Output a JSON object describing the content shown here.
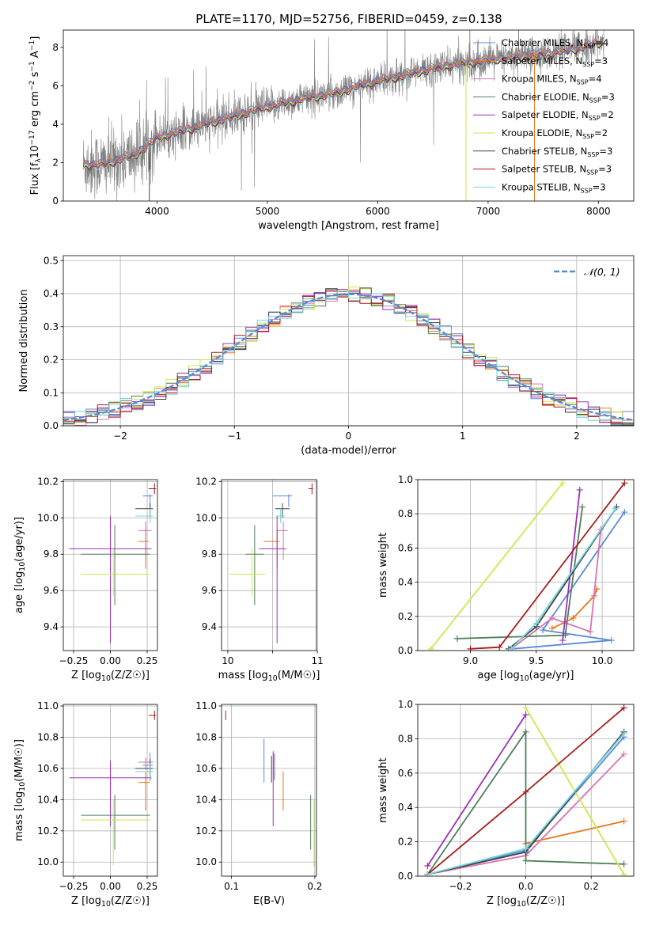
{
  "figure_title": "PLATE=1170, MJD=52756, FIBERID=0459, z=0.138",
  "model_colors": [
    "#5a8ad6",
    "#e8771e",
    "#db72b0",
    "#4f7f5a",
    "#9a30b8",
    "#cfe64c",
    "#454545",
    "#a81c1c",
    "#74d4e0"
  ],
  "legend_labels": [
    [
      "Chabrier MILES, N",
      "SSP",
      "=4"
    ],
    [
      "Salpeter MILES, N",
      "SSP",
      "=3"
    ],
    [
      "Kroupa MILES, N",
      "SSP",
      "=4"
    ],
    [
      "Chabrier ELODIE, N",
      "SSP",
      "=3"
    ],
    [
      "Salpeter ELODIE, N",
      "SSP",
      "=2"
    ],
    [
      "Kroupa ELODIE, N",
      "SSP",
      "=2"
    ],
    [
      "Chabrier STELIB, N",
      "SSP",
      "=3"
    ],
    [
      "Salpeter STELIB, N",
      "SSP",
      "=3"
    ],
    [
      "Kroupa STELIB, N",
      "SSP",
      "=3"
    ]
  ],
  "chart_data": [
    {
      "id": "spectrum",
      "type": "line",
      "xlabel": "wavelength [Angstrom, rest frame]",
      "ylabel_parts": [
        "Flux [f",
        "λ",
        "10",
        "−17",
        " erg cm",
        "−2",
        " s",
        "−1",
        " A",
        "−1",
        "]"
      ],
      "xlim": [
        3150,
        8320
      ],
      "ylim": [
        0,
        8.9
      ],
      "xticks": [
        4000,
        5000,
        6000,
        7000,
        8000
      ],
      "yticks": [
        0,
        2,
        4,
        6,
        8
      ],
      "observed_color": "#808080",
      "continuum_x": [
        3330,
        3500,
        3800,
        4000,
        4200,
        4500,
        4800,
        5000,
        5300,
        5600,
        5900,
        6200,
        6500,
        6800,
        7100,
        7400,
        7700,
        8050
      ],
      "continuum_y": [
        1.9,
        1.9,
        2.4,
        3.3,
        3.6,
        4.1,
        4.6,
        4.9,
        5.3,
        5.6,
        6.1,
        6.5,
        6.9,
        7.2,
        7.4,
        7.6,
        7.8,
        8.3
      ]
    },
    {
      "id": "residuals",
      "type": "histogram",
      "xlabel": "(data-model)/error",
      "ylabel": "Normed distribution",
      "xlim": [
        -2.5,
        2.5
      ],
      "ylim": [
        0,
        0.515
      ],
      "xticks": [
        -2,
        -1,
        0,
        1,
        2
      ],
      "yticks": [
        0.0,
        0.1,
        0.2,
        0.3,
        0.4,
        0.5
      ],
      "xtick_labels": [
        "−2",
        "−1",
        "0",
        "1",
        "2"
      ],
      "yticklabels": [
        "0.0",
        "0.1",
        "0.2",
        "0.3",
        "0.4",
        "0.5"
      ],
      "bin_width": 0.1,
      "normal_label": "𝒩(0, 1)",
      "normal_color": "#5a8ad6"
    },
    {
      "id": "age_vs_Z",
      "type": "scatter",
      "xlabel": "Z [log10(Z/Z☉)]",
      "ylabel": "age [log10(age/yr)]",
      "xlim": [
        -0.32,
        0.32
      ],
      "ylim": [
        9.27,
        10.21
      ],
      "xticks": [
        -0.25,
        0,
        0.25
      ],
      "xticklabels": [
        "−0.25",
        "0.00",
        "0.25"
      ],
      "yticks": [
        9.4,
        9.6,
        9.8,
        10.0,
        10.2
      ],
      "yticklabels": [
        "9.4",
        "9.6",
        "9.8",
        "10.0",
        "10.2"
      ],
      "points": [
        {
          "x": 0.27,
          "y": 10.12,
          "xerr": [
            0.05,
            0.02
          ],
          "yerr": [
            0.06,
            0.01
          ]
        },
        {
          "x": 0.24,
          "y": 9.87,
          "xerr": [
            0.05,
            0.02
          ],
          "yerr": [
            0.15,
            0.07
          ]
        },
        {
          "x": 0.24,
          "y": 9.93,
          "xerr": [
            0.05,
            0.04
          ],
          "yerr": [
            0.16,
            0.05
          ]
        },
        {
          "x": 0.03,
          "y": 9.8,
          "xerr": [
            0.23,
            0.24
          ],
          "yerr": [
            0.28,
            0.16
          ]
        },
        {
          "x": 0.0,
          "y": 9.83,
          "xerr": [
            0.28,
            0.28
          ],
          "yerr": [
            0.52,
            0.18
          ]
        },
        {
          "x": 0.02,
          "y": 9.69,
          "xerr": [
            0.22,
            0.25
          ],
          "yerr": [
            0.12,
            0.14
          ]
        },
        {
          "x": 0.27,
          "y": 10.05,
          "xerr": [
            0.1,
            0.02
          ],
          "yerr": [
            0.05,
            0.03
          ]
        },
        {
          "x": 0.3,
          "y": 10.16,
          "xerr": [
            0.04,
            0.01
          ],
          "yerr": [
            0.03,
            0.03
          ]
        },
        {
          "x": 0.27,
          "y": 10.01,
          "xerr": [
            0.1,
            0.02
          ],
          "yerr": [
            0.04,
            0.04
          ]
        }
      ]
    },
    {
      "id": "age_vs_mass",
      "type": "scatter",
      "xlabel": "mass [log10(M/M☉)]",
      "ylabel": "",
      "xlim": [
        9.93,
        10.99
      ],
      "ylim": [
        9.27,
        10.21
      ],
      "xticks": [
        10,
        10.5,
        11
      ],
      "xticklabels": [
        "10",
        "",
        "11"
      ],
      "yticks": [
        9.4,
        9.6,
        9.8,
        10.0,
        10.2
      ],
      "yticklabels": [
        "9.4",
        "9.6",
        "9.8",
        "10.0",
        "10.2"
      ],
      "points": [
        {
          "x": 10.68,
          "y": 10.12,
          "xerr": [
            0.18,
            0.04
          ],
          "yerr": [
            0.06,
            0.01
          ]
        },
        {
          "x": 10.55,
          "y": 9.87,
          "xerr": [
            0.15,
            0.03
          ],
          "yerr": [
            0.15,
            0.07
          ]
        },
        {
          "x": 10.62,
          "y": 9.93,
          "xerr": [
            0.07,
            0.05
          ],
          "yerr": [
            0.16,
            0.05
          ]
        },
        {
          "x": 10.3,
          "y": 9.8,
          "xerr": [
            0.1,
            0.1
          ],
          "yerr": [
            0.28,
            0.16
          ]
        },
        {
          "x": 10.55,
          "y": 9.83,
          "xerr": [
            0.2,
            0.1
          ],
          "yerr": [
            0.52,
            0.18
          ]
        },
        {
          "x": 10.27,
          "y": 9.69,
          "xerr": [
            0.25,
            0.15
          ],
          "yerr": [
            0.12,
            0.14
          ]
        },
        {
          "x": 10.61,
          "y": 10.05,
          "xerr": [
            0.08,
            0.08
          ],
          "yerr": [
            0.05,
            0.03
          ]
        },
        {
          "x": 10.94,
          "y": 10.16,
          "xerr": [
            0.04,
            0.01
          ],
          "yerr": [
            0.03,
            0.03
          ]
        },
        {
          "x": 10.59,
          "y": 10.01,
          "xerr": [
            0.05,
            0.05
          ],
          "yerr": [
            0.04,
            0.04
          ]
        }
      ]
    },
    {
      "id": "weights_vs_age",
      "type": "line",
      "xlabel": "age [log10(age/yr)]",
      "ylabel": "mass weight",
      "xlim": [
        8.6,
        10.24
      ],
      "ylim": [
        0,
        1
      ],
      "xticks": [
        9.0,
        9.5,
        10.0
      ],
      "yticks": [
        0,
        0.2,
        0.4,
        0.6,
        0.8,
        1.0
      ],
      "xticklabels": [
        "9.0",
        "9.5",
        "10.0"
      ],
      "yticklabels": [
        "0.0",
        "0.2",
        "0.4",
        "0.6",
        "0.8",
        "1.0"
      ],
      "series": [
        {
          "x": [
            10.17,
            9.55,
            10.07,
            9.32
          ],
          "y": [
            0.81,
            0.12,
            0.06,
            0.01
          ]
        },
        {
          "x": [
            9.96,
            9.94,
            9.78,
            9.62
          ],
          "y": [
            0.36,
            0.32,
            0.19,
            0.13
          ]
        },
        {
          "x": [
            9.99,
            9.91,
            9.62,
            9.31
          ],
          "y": [
            0.71,
            0.11,
            0.19,
            0.01
          ]
        },
        {
          "x": [
            9.85,
            9.72,
            8.9
          ],
          "y": [
            0.84,
            0.09,
            0.07
          ]
        },
        {
          "x": [
            9.83,
            9.7
          ],
          "y": [
            0.94,
            0.06
          ]
        },
        {
          "x": [
            9.7,
            8.7
          ],
          "y": [
            0.98,
            0.01
          ]
        },
        {
          "x": [
            10.11,
            9.5,
            9.29
          ],
          "y": [
            0.84,
            0.14,
            0.01
          ]
        },
        {
          "x": [
            10.17,
            9.22,
            9.0
          ],
          "y": [
            0.98,
            0.02,
            0.01
          ]
        },
        {
          "x": [
            10.1,
            9.5,
            9.31
          ],
          "y": [
            0.83,
            0.16,
            0.01
          ]
        }
      ]
    },
    {
      "id": "mass_vs_Z",
      "type": "scatter",
      "xlabel": "Z [log10(Z/Z☉)]",
      "ylabel": "mass [log10(M/M☉)]",
      "xlim": [
        -0.32,
        0.32
      ],
      "ylim": [
        9.91,
        11.01
      ],
      "xticks": [
        -0.25,
        0,
        0.25
      ],
      "xticklabels": [
        "−0.25",
        "0.00",
        "0.25"
      ],
      "yticks": [
        10.0,
        10.2,
        10.4,
        10.6,
        10.8,
        11.0
      ],
      "yticklabels": [
        "10.0",
        "10.2",
        "10.4",
        "10.6",
        "10.8",
        "11.0"
      ],
      "points": [
        {
          "x": 0.27,
          "y": 10.62,
          "xerr": [
            0.05,
            0.02
          ],
          "yerr": [
            0.1,
            0.08
          ]
        },
        {
          "x": 0.24,
          "y": 10.51,
          "xerr": [
            0.05,
            0.03
          ],
          "yerr": [
            0.18,
            0.07
          ]
        },
        {
          "x": 0.24,
          "y": 10.64,
          "xerr": [
            0.05,
            0.05
          ],
          "yerr": [
            0.05,
            0.03
          ]
        },
        {
          "x": 0.03,
          "y": 10.3,
          "xerr": [
            0.23,
            0.24
          ],
          "yerr": [
            0.22,
            0.13
          ]
        },
        {
          "x": 0.0,
          "y": 10.54,
          "xerr": [
            0.28,
            0.28
          ],
          "yerr": [
            0.31,
            0.11
          ]
        },
        {
          "x": 0.02,
          "y": 10.27,
          "xerr": [
            0.22,
            0.25
          ],
          "yerr": [
            0.29,
            0.13
          ]
        },
        {
          "x": 0.27,
          "y": 10.6,
          "xerr": [
            0.1,
            0.02
          ],
          "yerr": [
            0.08,
            0.06
          ]
        },
        {
          "x": 0.3,
          "y": 10.94,
          "xerr": [
            0.04,
            0.01
          ],
          "yerr": [
            0.03,
            0.03
          ]
        },
        {
          "x": 0.27,
          "y": 10.58,
          "xerr": [
            0.1,
            0.02
          ],
          "yerr": [
            0.06,
            0.05
          ]
        }
      ]
    },
    {
      "id": "mass_vs_EBV",
      "type": "scatter",
      "xlabel": "E(B-V)",
      "ylabel": "",
      "xlim": [
        0.088,
        0.202
      ],
      "ylim": [
        9.91,
        11.01
      ],
      "xticks": [
        0.1,
        0.2
      ],
      "xticklabels": [
        "0.1",
        "0.2"
      ],
      "yticks": [
        10.0,
        10.2,
        10.4,
        10.6,
        10.8,
        11.0
      ],
      "yticklabels": [
        "10.0",
        "10.2",
        "10.4",
        "10.6",
        "10.8",
        "11.0"
      ],
      "points": [
        {
          "x": 0.139,
          "y": 10.65,
          "xerr": [
            0,
            0
          ],
          "yerr": [
            0.14,
            0.14
          ]
        },
        {
          "x": 0.162,
          "y": 10.47,
          "xerr": [
            0,
            0
          ],
          "yerr": [
            0.14,
            0.11
          ]
        },
        {
          "x": 0.151,
          "y": 10.6,
          "xerr": [
            0,
            0
          ],
          "yerr": [
            0.07,
            0.1
          ]
        },
        {
          "x": 0.195,
          "y": 10.25,
          "xerr": [
            0,
            0
          ],
          "yerr": [
            0.17,
            0.18
          ]
        },
        {
          "x": 0.15,
          "y": 10.46,
          "xerr": [
            0,
            0
          ],
          "yerr": [
            0.23,
            0.25
          ]
        },
        {
          "x": 0.199,
          "y": 10.18,
          "xerr": [
            0,
            0
          ],
          "yerr": [
            0.21,
            0.22
          ]
        },
        {
          "x": 0.148,
          "y": 10.58,
          "xerr": [
            0,
            0
          ],
          "yerr": [
            0.07,
            0.1
          ]
        },
        {
          "x": 0.093,
          "y": 10.94,
          "xerr": [
            0,
            0
          ],
          "yerr": [
            0.03,
            0.03
          ]
        },
        {
          "x": 0.152,
          "y": 10.6,
          "xerr": [
            0,
            0
          ],
          "yerr": [
            0.08,
            0.09
          ]
        }
      ]
    },
    {
      "id": "weights_vs_Z",
      "type": "line",
      "xlabel": "Z [log10(Z/Z☉)]",
      "ylabel": "mass weight",
      "xlim": [
        -0.33,
        0.33
      ],
      "ylim": [
        0,
        1
      ],
      "xticks": [
        -0.2,
        0.0,
        0.2
      ],
      "xticklabels": [
        "−0.2",
        "0.0",
        "0.2"
      ],
      "yticks": [
        0,
        0.2,
        0.4,
        0.6,
        0.8,
        1.0
      ],
      "yticklabels": [
        "0.0",
        "0.2",
        "0.4",
        "0.6",
        "0.8",
        "1.0"
      ],
      "series": [
        {
          "x": [
            0.3,
            0.0,
            -0.3
          ],
          "y": [
            0.81,
            0.15,
            0.01
          ]
        },
        {
          "x": [
            0.3,
            0.0
          ],
          "y": [
            0.32,
            0.19
          ]
        },
        {
          "x": [
            0.3,
            0.0,
            -0.3
          ],
          "y": [
            0.71,
            0.12,
            0.01
          ]
        },
        {
          "x": [
            0.3,
            0.0,
            0.0,
            -0.3
          ],
          "y": [
            0.07,
            0.09,
            0.84,
            0.01
          ]
        },
        {
          "x": [
            0.0,
            -0.3
          ],
          "y": [
            0.94,
            0.06
          ]
        },
        {
          "x": [
            0.0,
            0.3
          ],
          "y": [
            0.98,
            0.01
          ]
        },
        {
          "x": [
            0.3,
            0.0,
            -0.3
          ],
          "y": [
            0.84,
            0.14,
            0.01
          ]
        },
        {
          "x": [
            0.3,
            0.0,
            -0.3
          ],
          "y": [
            0.98,
            0.49,
            0.01
          ]
        },
        {
          "x": [
            0.3,
            0.0,
            -0.3
          ],
          "y": [
            0.83,
            0.16,
            0.01
          ]
        }
      ]
    }
  ]
}
